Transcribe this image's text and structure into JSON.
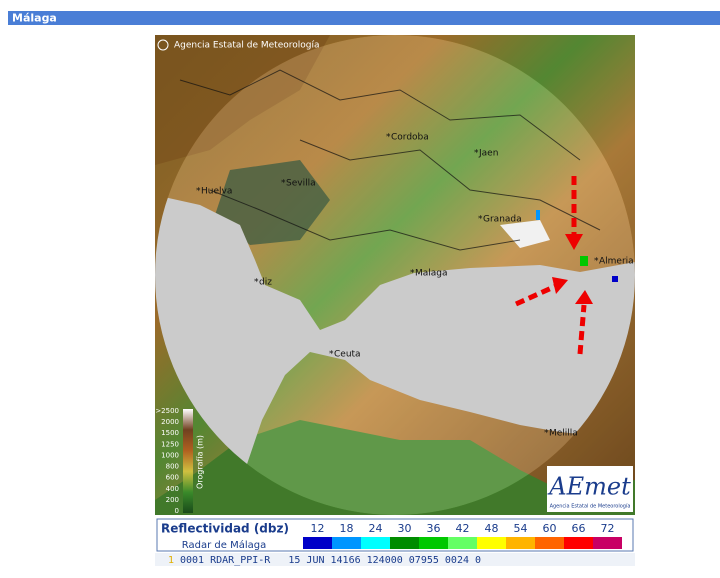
{
  "header": {
    "title": "Málaga"
  },
  "map": {
    "copyright": "Agencia Estatal de Meteorología",
    "cities": [
      {
        "label": "Cordoba"
      },
      {
        "label": "Jaen"
      },
      {
        "label": "Huelva"
      },
      {
        "label": "Sevilla"
      },
      {
        "label": "Granada"
      },
      {
        "label": "Almeria"
      },
      {
        "label": "Malaga"
      },
      {
        "label": "diz"
      },
      {
        "label": "Ceuta"
      },
      {
        "label": "Melilla"
      }
    ],
    "orography": {
      "title": "Orografía (m)",
      "labels": [
        ">2500",
        "2000",
        "1500",
        "1250",
        "1000",
        "800",
        "600",
        "400",
        "200",
        "0"
      ]
    },
    "logo": {
      "name": "AEmet",
      "subtitle": "Agencia Estatal de Meteorología"
    }
  },
  "reflectivity": {
    "title": "Reflectividad (dbz)",
    "subtitle": "Radar de Málaga",
    "levels": [
      {
        "label": "12",
        "color": "#0000c8"
      },
      {
        "label": "18",
        "color": "#0096ff"
      },
      {
        "label": "24",
        "color": "#00ffff"
      },
      {
        "label": "30",
        "color": "#008c00"
      },
      {
        "label": "36",
        "color": "#00c800"
      },
      {
        "label": "42",
        "color": "#64ff64"
      },
      {
        "label": "48",
        "color": "#ffff00"
      },
      {
        "label": "54",
        "color": "#ffb400"
      },
      {
        "label": "60",
        "color": "#ff6400"
      },
      {
        "label": "66",
        "color": "#ff0000"
      },
      {
        "label": "72",
        "color": "#c80064"
      }
    ]
  },
  "status_line": {
    "flag": "1",
    "text": "0001 RDAR_PPI-R   15 JUN 14166 124000 07955 0024 0"
  }
}
